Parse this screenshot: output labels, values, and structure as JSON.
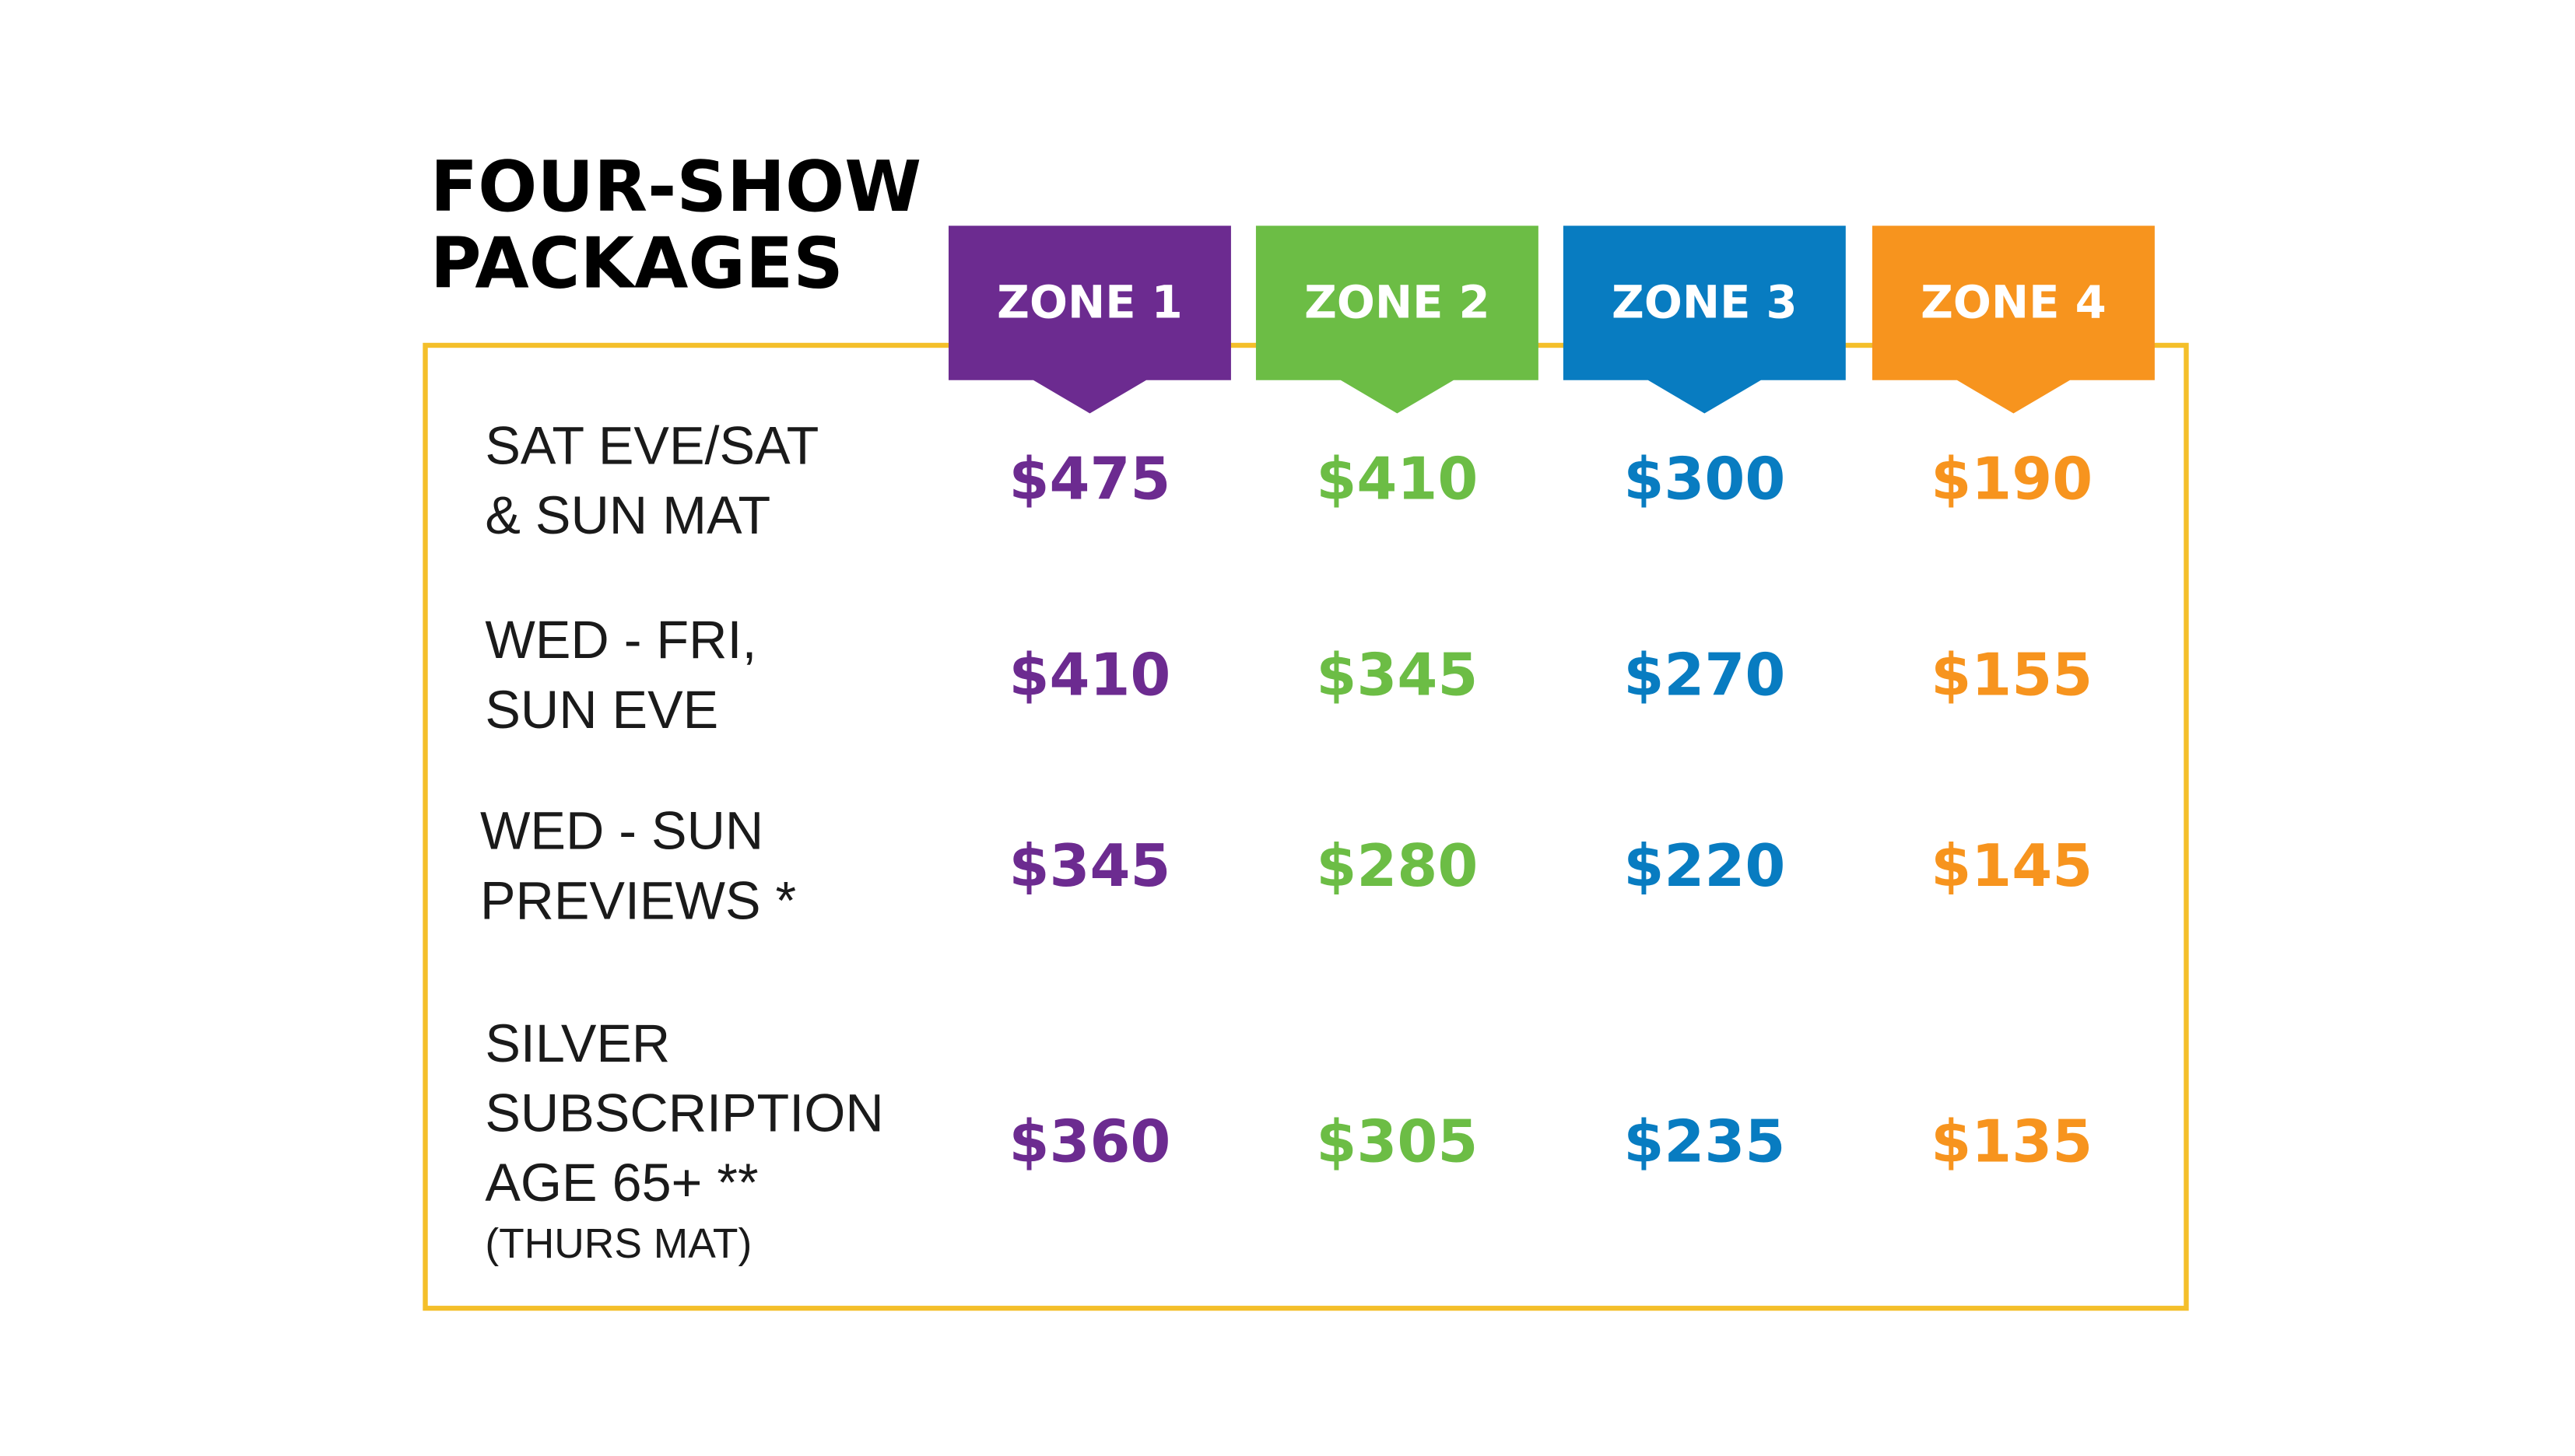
{
  "title": [
    "FOUR-SHOW",
    "PACKAGES"
  ],
  "border_color": "#f4bf2a",
  "zones": [
    {
      "label": "ZONE 1",
      "color": "#6c2b90"
    },
    {
      "label": "ZONE 2",
      "color": "#6cbd45"
    },
    {
      "label": "ZONE 3",
      "color": "#087cc1"
    },
    {
      "label": "ZONE 4",
      "color": "#f7941e"
    }
  ],
  "rows": [
    {
      "label": [
        "SAT EVE/SAT",
        "& SUN MAT"
      ],
      "prices": [
        "$475",
        "$410",
        "$300",
        "$190"
      ]
    },
    {
      "label": [
        "WED - FRI,",
        "SUN EVE"
      ],
      "prices": [
        "$410",
        "$345",
        "$270",
        "$155"
      ]
    },
    {
      "label": [
        "WED - SUN",
        "PREVIEWS *"
      ],
      "prices": [
        "$345",
        "$280",
        "$220",
        "$145"
      ]
    },
    {
      "label": [
        "SILVER",
        "SUBSCRIPTION",
        "AGE 65+ **"
      ],
      "note": "(THURS MAT)",
      "prices": [
        "$360",
        "$305",
        "$235",
        "$135"
      ]
    }
  ]
}
